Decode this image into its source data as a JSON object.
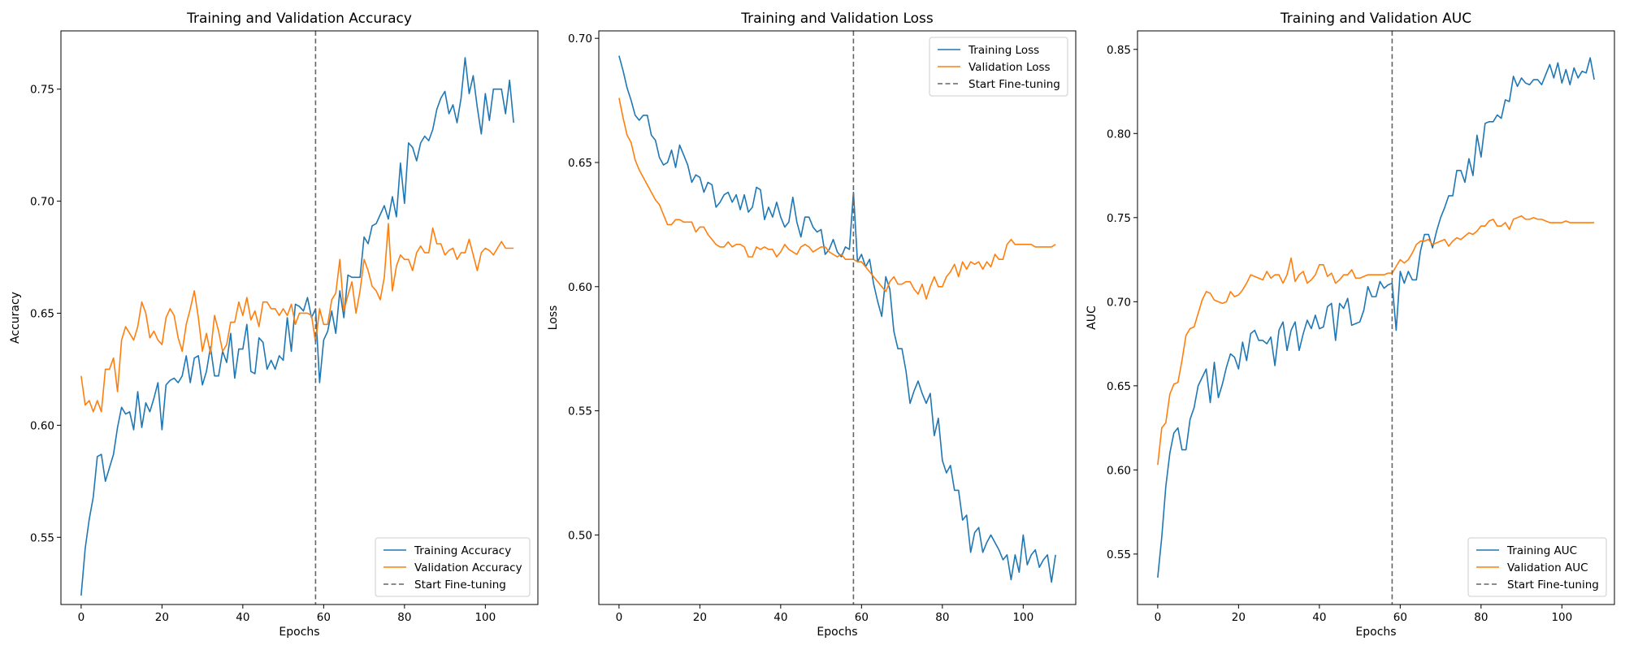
{
  "chart_data": [
    {
      "type": "line",
      "title": "Training and Validation Accuracy",
      "xlabel": "Epochs",
      "ylabel": "Accuracy",
      "xlim": [
        -5,
        113
      ],
      "ylim": [
        0.52,
        0.776
      ],
      "xticks": [
        0,
        20,
        40,
        60,
        80,
        100
      ],
      "yticks": [
        0.55,
        0.6,
        0.65,
        0.7,
        0.75
      ],
      "xtick_labels": [
        "0",
        "20",
        "40",
        "60",
        "80",
        "100"
      ],
      "ytick_labels": [
        "0.55",
        "0.60",
        "0.65",
        "0.70",
        "0.75"
      ],
      "grid": false,
      "legend": "lower-right",
      "vline": {
        "x": 58,
        "label": "Start Fine-tuning",
        "color": "#666666",
        "style": "dashed"
      },
      "series": [
        {
          "name": "Training Accuracy",
          "color": "#1f77b4",
          "values": [
            0.524,
            0.545,
            0.558,
            0.568,
            0.586,
            0.587,
            0.575,
            0.581,
            0.587,
            0.599,
            0.608,
            0.605,
            0.606,
            0.598,
            0.615,
            0.599,
            0.61,
            0.606,
            0.612,
            0.619,
            0.598,
            0.618,
            0.62,
            0.621,
            0.619,
            0.622,
            0.631,
            0.619,
            0.63,
            0.631,
            0.618,
            0.624,
            0.635,
            0.622,
            0.622,
            0.633,
            0.628,
            0.641,
            0.621,
            0.634,
            0.634,
            0.645,
            0.624,
            0.623,
            0.639,
            0.637,
            0.625,
            0.629,
            0.625,
            0.631,
            0.629,
            0.648,
            0.633,
            0.654,
            0.653,
            0.651,
            0.657,
            0.648,
            0.652,
            0.619,
            0.638,
            0.642,
            0.651,
            0.641,
            0.66,
            0.648,
            0.667,
            0.666,
            0.666,
            0.666,
            0.684,
            0.681,
            0.689,
            0.69,
            0.694,
            0.698,
            0.692,
            0.702,
            0.693,
            0.717,
            0.699,
            0.726,
            0.724,
            0.718,
            0.726,
            0.729,
            0.727,
            0.732,
            0.741,
            0.746,
            0.749,
            0.739,
            0.743,
            0.735,
            0.746,
            0.764,
            0.748,
            0.756,
            0.742,
            0.73,
            0.748,
            0.736,
            0.75,
            0.75,
            0.75,
            0.739,
            0.754,
            0.735
          ]
        },
        {
          "name": "Validation Accuracy",
          "color": "#ff7f0e",
          "values": [
            0.622,
            0.609,
            0.611,
            0.606,
            0.611,
            0.606,
            0.625,
            0.625,
            0.63,
            0.615,
            0.638,
            0.644,
            0.641,
            0.638,
            0.644,
            0.655,
            0.65,
            0.639,
            0.642,
            0.638,
            0.636,
            0.648,
            0.652,
            0.649,
            0.639,
            0.633,
            0.645,
            0.652,
            0.66,
            0.648,
            0.633,
            0.641,
            0.632,
            0.649,
            0.642,
            0.633,
            0.636,
            0.646,
            0.646,
            0.655,
            0.649,
            0.657,
            0.647,
            0.651,
            0.644,
            0.655,
            0.655,
            0.652,
            0.652,
            0.649,
            0.652,
            0.649,
            0.654,
            0.645,
            0.65,
            0.65,
            0.65,
            0.649,
            0.637,
            0.652,
            0.645,
            0.645,
            0.656,
            0.659,
            0.674,
            0.651,
            0.658,
            0.664,
            0.65,
            0.66,
            0.674,
            0.669,
            0.662,
            0.66,
            0.656,
            0.666,
            0.69,
            0.66,
            0.671,
            0.676,
            0.674,
            0.674,
            0.669,
            0.677,
            0.68,
            0.677,
            0.677,
            0.688,
            0.681,
            0.681,
            0.676,
            0.678,
            0.679,
            0.674,
            0.677,
            0.677,
            0.683,
            0.676,
            0.669,
            0.677,
            0.679,
            0.678,
            0.676,
            0.679,
            0.682,
            0.679,
            0.679,
            0.679
          ]
        }
      ]
    },
    {
      "type": "line",
      "title": "Training and Validation Loss",
      "xlabel": "Epochs",
      "ylabel": "Loss",
      "xlim": [
        -5,
        113
      ],
      "ylim": [
        0.472,
        0.703
      ],
      "xticks": [
        0,
        20,
        40,
        60,
        80,
        100
      ],
      "yticks": [
        0.5,
        0.55,
        0.6,
        0.65,
        0.7
      ],
      "xtick_labels": [
        "0",
        "20",
        "40",
        "60",
        "80",
        "100"
      ],
      "ytick_labels": [
        "0.50",
        "0.55",
        "0.60",
        "0.65",
        "0.70"
      ],
      "grid": false,
      "legend": "top-right",
      "vline": {
        "x": 58,
        "label": "Start Fine-tuning",
        "color": "#666666",
        "style": "dashed"
      },
      "series": [
        {
          "name": "Training Loss",
          "color": "#1f77b4",
          "values": [
            0.693,
            0.687,
            0.68,
            0.675,
            0.669,
            0.667,
            0.669,
            0.669,
            0.661,
            0.659,
            0.652,
            0.649,
            0.65,
            0.655,
            0.648,
            0.657,
            0.653,
            0.649,
            0.642,
            0.645,
            0.644,
            0.638,
            0.642,
            0.641,
            0.632,
            0.634,
            0.637,
            0.638,
            0.634,
            0.637,
            0.631,
            0.637,
            0.63,
            0.632,
            0.64,
            0.639,
            0.627,
            0.632,
            0.628,
            0.634,
            0.628,
            0.624,
            0.626,
            0.636,
            0.626,
            0.62,
            0.628,
            0.628,
            0.624,
            0.622,
            0.623,
            0.613,
            0.615,
            0.619,
            0.614,
            0.612,
            0.616,
            0.615,
            0.638,
            0.61,
            0.613,
            0.608,
            0.611,
            0.601,
            0.594,
            0.588,
            0.604,
            0.599,
            0.582,
            0.575,
            0.575,
            0.566,
            0.553,
            0.558,
            0.562,
            0.557,
            0.553,
            0.557,
            0.54,
            0.547,
            0.53,
            0.525,
            0.528,
            0.518,
            0.518,
            0.506,
            0.508,
            0.493,
            0.501,
            0.503,
            0.493,
            0.497,
            0.5,
            0.497,
            0.494,
            0.49,
            0.492,
            0.482,
            0.492,
            0.485,
            0.5,
            0.488,
            0.492,
            0.494,
            0.487,
            0.49,
            0.492,
            0.481,
            0.492
          ]
        },
        {
          "name": "Validation Loss",
          "color": "#ff7f0e",
          "values": [
            0.676,
            0.668,
            0.661,
            0.658,
            0.651,
            0.647,
            0.644,
            0.641,
            0.638,
            0.635,
            0.633,
            0.629,
            0.625,
            0.625,
            0.627,
            0.627,
            0.626,
            0.626,
            0.626,
            0.622,
            0.624,
            0.624,
            0.621,
            0.619,
            0.617,
            0.616,
            0.616,
            0.618,
            0.616,
            0.617,
            0.617,
            0.616,
            0.612,
            0.612,
            0.616,
            0.615,
            0.616,
            0.615,
            0.615,
            0.612,
            0.614,
            0.617,
            0.615,
            0.614,
            0.613,
            0.616,
            0.617,
            0.616,
            0.614,
            0.615,
            0.616,
            0.616,
            0.614,
            0.613,
            0.612,
            0.613,
            0.611,
            0.611,
            0.611,
            0.61,
            0.61,
            0.608,
            0.606,
            0.604,
            0.602,
            0.6,
            0.598,
            0.602,
            0.604,
            0.601,
            0.601,
            0.602,
            0.602,
            0.599,
            0.597,
            0.601,
            0.595,
            0.6,
            0.604,
            0.6,
            0.6,
            0.604,
            0.606,
            0.609,
            0.604,
            0.61,
            0.607,
            0.61,
            0.609,
            0.61,
            0.607,
            0.61,
            0.608,
            0.613,
            0.611,
            0.611,
            0.617,
            0.619,
            0.617,
            0.617,
            0.617,
            0.617,
            0.617,
            0.616,
            0.616,
            0.616,
            0.616,
            0.616,
            0.617
          ]
        }
      ]
    },
    {
      "type": "line",
      "title": "Training and Validation AUC",
      "xlabel": "Epochs",
      "ylabel": "AUC",
      "xlim": [
        -5,
        113
      ],
      "ylim": [
        0.52,
        0.861
      ],
      "xticks": [
        0,
        20,
        40,
        60,
        80,
        100
      ],
      "yticks": [
        0.55,
        0.6,
        0.65,
        0.7,
        0.75,
        0.8,
        0.85
      ],
      "xtick_labels": [
        "0",
        "20",
        "40",
        "60",
        "80",
        "100"
      ],
      "ytick_labels": [
        "0.55",
        "0.60",
        "0.65",
        "0.70",
        "0.75",
        "0.80",
        "0.85"
      ],
      "grid": false,
      "legend": "lower-right",
      "vline": {
        "x": 58,
        "label": "Start Fine-tuning",
        "color": "#666666",
        "style": "dashed"
      },
      "series": [
        {
          "name": "Training AUC",
          "color": "#1f77b4",
          "values": [
            0.536,
            0.56,
            0.59,
            0.61,
            0.622,
            0.625,
            0.612,
            0.612,
            0.63,
            0.637,
            0.65,
            0.655,
            0.66,
            0.64,
            0.664,
            0.643,
            0.651,
            0.661,
            0.669,
            0.667,
            0.66,
            0.676,
            0.665,
            0.681,
            0.683,
            0.677,
            0.677,
            0.675,
            0.679,
            0.662,
            0.683,
            0.688,
            0.671,
            0.683,
            0.688,
            0.671,
            0.681,
            0.689,
            0.684,
            0.692,
            0.684,
            0.685,
            0.697,
            0.699,
            0.677,
            0.699,
            0.696,
            0.702,
            0.686,
            0.687,
            0.688,
            0.695,
            0.709,
            0.703,
            0.703,
            0.712,
            0.708,
            0.71,
            0.711,
            0.683,
            0.718,
            0.711,
            0.718,
            0.713,
            0.713,
            0.73,
            0.74,
            0.74,
            0.732,
            0.742,
            0.75,
            0.756,
            0.763,
            0.763,
            0.778,
            0.778,
            0.771,
            0.785,
            0.775,
            0.799,
            0.786,
            0.806,
            0.807,
            0.807,
            0.811,
            0.809,
            0.82,
            0.819,
            0.834,
            0.828,
            0.833,
            0.83,
            0.829,
            0.832,
            0.832,
            0.829,
            0.835,
            0.841,
            0.833,
            0.842,
            0.83,
            0.838,
            0.829,
            0.839,
            0.833,
            0.837,
            0.836,
            0.845,
            0.832
          ]
        },
        {
          "name": "Validation AUC",
          "color": "#ff7f0e",
          "values": [
            0.603,
            0.625,
            0.628,
            0.645,
            0.651,
            0.652,
            0.665,
            0.68,
            0.684,
            0.685,
            0.693,
            0.701,
            0.706,
            0.705,
            0.701,
            0.7,
            0.699,
            0.7,
            0.706,
            0.703,
            0.704,
            0.707,
            0.711,
            0.716,
            0.715,
            0.714,
            0.713,
            0.718,
            0.714,
            0.716,
            0.716,
            0.711,
            0.716,
            0.726,
            0.712,
            0.716,
            0.718,
            0.711,
            0.713,
            0.716,
            0.722,
            0.722,
            0.715,
            0.717,
            0.711,
            0.713,
            0.716,
            0.716,
            0.719,
            0.714,
            0.714,
            0.715,
            0.716,
            0.716,
            0.716,
            0.716,
            0.716,
            0.717,
            0.717,
            0.721,
            0.725,
            0.723,
            0.725,
            0.729,
            0.734,
            0.736,
            0.736,
            0.737,
            0.734,
            0.735,
            0.736,
            0.737,
            0.733,
            0.736,
            0.738,
            0.737,
            0.739,
            0.741,
            0.74,
            0.742,
            0.745,
            0.745,
            0.748,
            0.749,
            0.745,
            0.745,
            0.747,
            0.743,
            0.749,
            0.75,
            0.751,
            0.749,
            0.749,
            0.75,
            0.749,
            0.749,
            0.748,
            0.747,
            0.747,
            0.747,
            0.747,
            0.748,
            0.747,
            0.747,
            0.747,
            0.747,
            0.747,
            0.747,
            0.747
          ]
        }
      ]
    }
  ]
}
